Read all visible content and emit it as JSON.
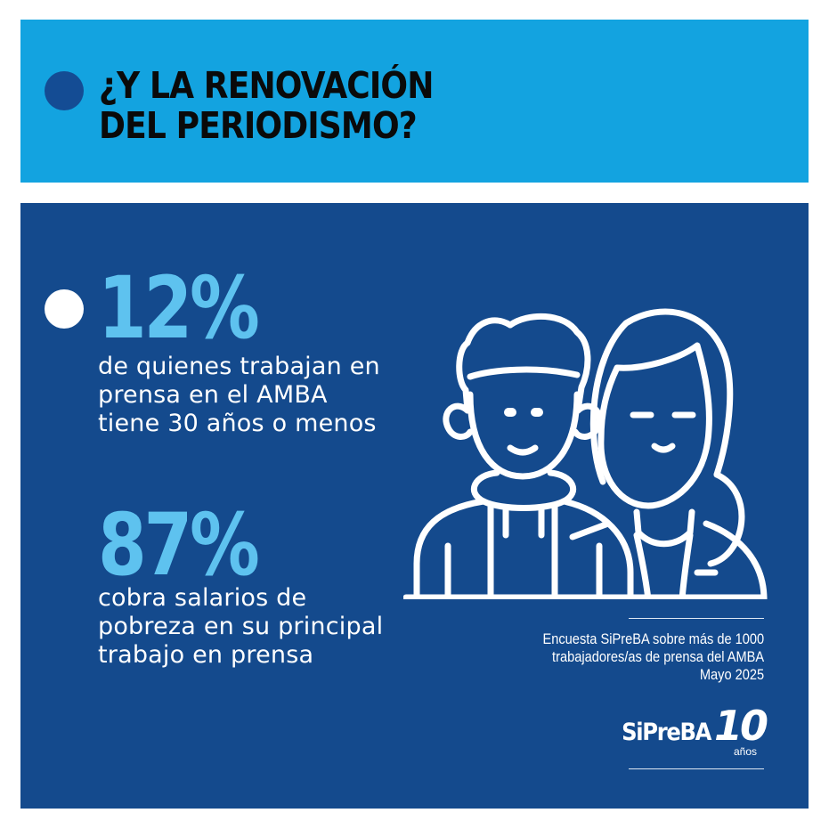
{
  "header": {
    "title": "¿Y LA RENOVACIÓN\nDEL PERIODISMO?",
    "background": "#13a3e0",
    "dot_color": "#144c94"
  },
  "main": {
    "background": "#144a8d",
    "accent": "#5ec2ef",
    "stats": [
      {
        "value": "12%",
        "text": "de quienes trabajan en prensa en el AMBA tiene 30 años o menos"
      },
      {
        "value": "87%",
        "text": "cobra salarios de pobreza en su principal trabajo en prensa"
      }
    ],
    "illustration": "two-young-people-outline-icon",
    "source": {
      "line1": "Encuesta SiPreBA sobre más de 1000",
      "line2": "trabajadores/as de prensa del AMBA",
      "line3": "Mayo 2025"
    },
    "logo": {
      "name": "SiPreBA",
      "number": "10",
      "suffix": "años"
    }
  }
}
